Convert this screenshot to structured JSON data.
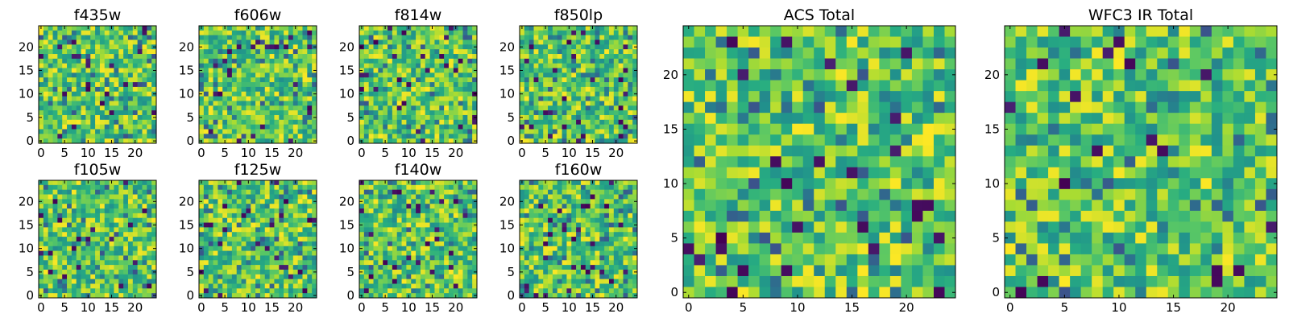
{
  "chart_data": [
    {
      "type": "heatmap",
      "title": "f435w",
      "xticks": [
        "0",
        "5",
        "10",
        "15",
        "20"
      ],
      "yticks": [
        "0",
        "5",
        "10",
        "15",
        "20"
      ],
      "grid_size": 25,
      "value_range": [
        0,
        1
      ],
      "colormap": "viridis"
    },
    {
      "type": "heatmap",
      "title": "f606w",
      "xticks": [
        "0",
        "5",
        "10",
        "15",
        "20"
      ],
      "yticks": [
        "0",
        "5",
        "10",
        "15",
        "20"
      ],
      "grid_size": 25,
      "value_range": [
        0,
        1
      ],
      "colormap": "viridis"
    },
    {
      "type": "heatmap",
      "title": "f814w",
      "xticks": [
        "0",
        "5",
        "10",
        "15",
        "20"
      ],
      "yticks": [
        "0",
        "5",
        "10",
        "15",
        "20"
      ],
      "grid_size": 25,
      "value_range": [
        0,
        1
      ],
      "colormap": "viridis"
    },
    {
      "type": "heatmap",
      "title": "f850lp",
      "xticks": [
        "0",
        "5",
        "10",
        "15",
        "20"
      ],
      "yticks": [
        "0",
        "5",
        "10",
        "15",
        "20"
      ],
      "grid_size": 25,
      "value_range": [
        0,
        1
      ],
      "colormap": "viridis"
    },
    {
      "type": "heatmap",
      "title": "f105w",
      "xticks": [
        "0",
        "5",
        "10",
        "15",
        "20"
      ],
      "yticks": [
        "0",
        "5",
        "10",
        "15",
        "20"
      ],
      "grid_size": 25,
      "value_range": [
        0,
        1
      ],
      "colormap": "viridis"
    },
    {
      "type": "heatmap",
      "title": "f125w",
      "xticks": [
        "0",
        "5",
        "10",
        "15",
        "20"
      ],
      "yticks": [
        "0",
        "5",
        "10",
        "15",
        "20"
      ],
      "grid_size": 25,
      "value_range": [
        0,
        1
      ],
      "colormap": "viridis"
    },
    {
      "type": "heatmap",
      "title": "f140w",
      "xticks": [
        "0",
        "5",
        "10",
        "15",
        "20"
      ],
      "yticks": [
        "0",
        "5",
        "10",
        "15",
        "20"
      ],
      "grid_size": 25,
      "value_range": [
        0,
        1
      ],
      "colormap": "viridis"
    },
    {
      "type": "heatmap",
      "title": "f160w",
      "xticks": [
        "0",
        "5",
        "10",
        "15",
        "20"
      ],
      "yticks": [
        "0",
        "5",
        "10",
        "15",
        "20"
      ],
      "grid_size": 25,
      "value_range": [
        0,
        1
      ],
      "colormap": "viridis"
    },
    {
      "type": "heatmap",
      "title": "ACS Total",
      "xticks": [
        "0",
        "5",
        "10",
        "15",
        "20"
      ],
      "yticks": [
        "0",
        "5",
        "10",
        "15",
        "20"
      ],
      "grid_size": 25,
      "value_range": [
        0,
        1
      ],
      "colormap": "viridis"
    },
    {
      "type": "heatmap",
      "title": "WFC3 IR Total",
      "xticks": [
        "0",
        "5",
        "10",
        "15",
        "20"
      ],
      "yticks": [
        "0",
        "5",
        "10",
        "15",
        "20"
      ],
      "grid_size": 25,
      "value_range": [
        0,
        1
      ],
      "colormap": "viridis"
    }
  ]
}
